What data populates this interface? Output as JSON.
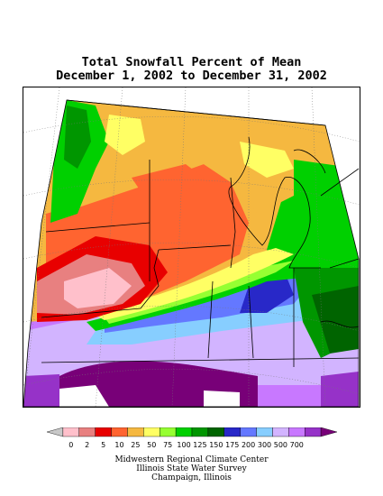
{
  "title": {
    "line1": "Total Snowfall Percent of Mean",
    "line2": "December 1, 2002 to December 31, 2002"
  },
  "legend": {
    "colors": [
      "#c8c8c8",
      "#ffc0cb",
      "#e88080",
      "#e80000",
      "#ff6430",
      "#f5b840",
      "#ffff64",
      "#96ff32",
      "#00d000",
      "#009600",
      "#006400",
      "#2828c8",
      "#6478ff",
      "#87ceff",
      "#d2b4ff",
      "#c878ff",
      "#9632c8",
      "#780078"
    ],
    "labels": [
      "0",
      "2",
      "5",
      "10",
      "25",
      "50",
      "75",
      "100",
      "125",
      "150",
      "175",
      "200",
      "300",
      "500",
      "700"
    ]
  },
  "credits": {
    "line1": "Midwestern Regional Climate Center",
    "line2": "Illinois State Water Survey",
    "line3": "Champaign, Illinois"
  }
}
